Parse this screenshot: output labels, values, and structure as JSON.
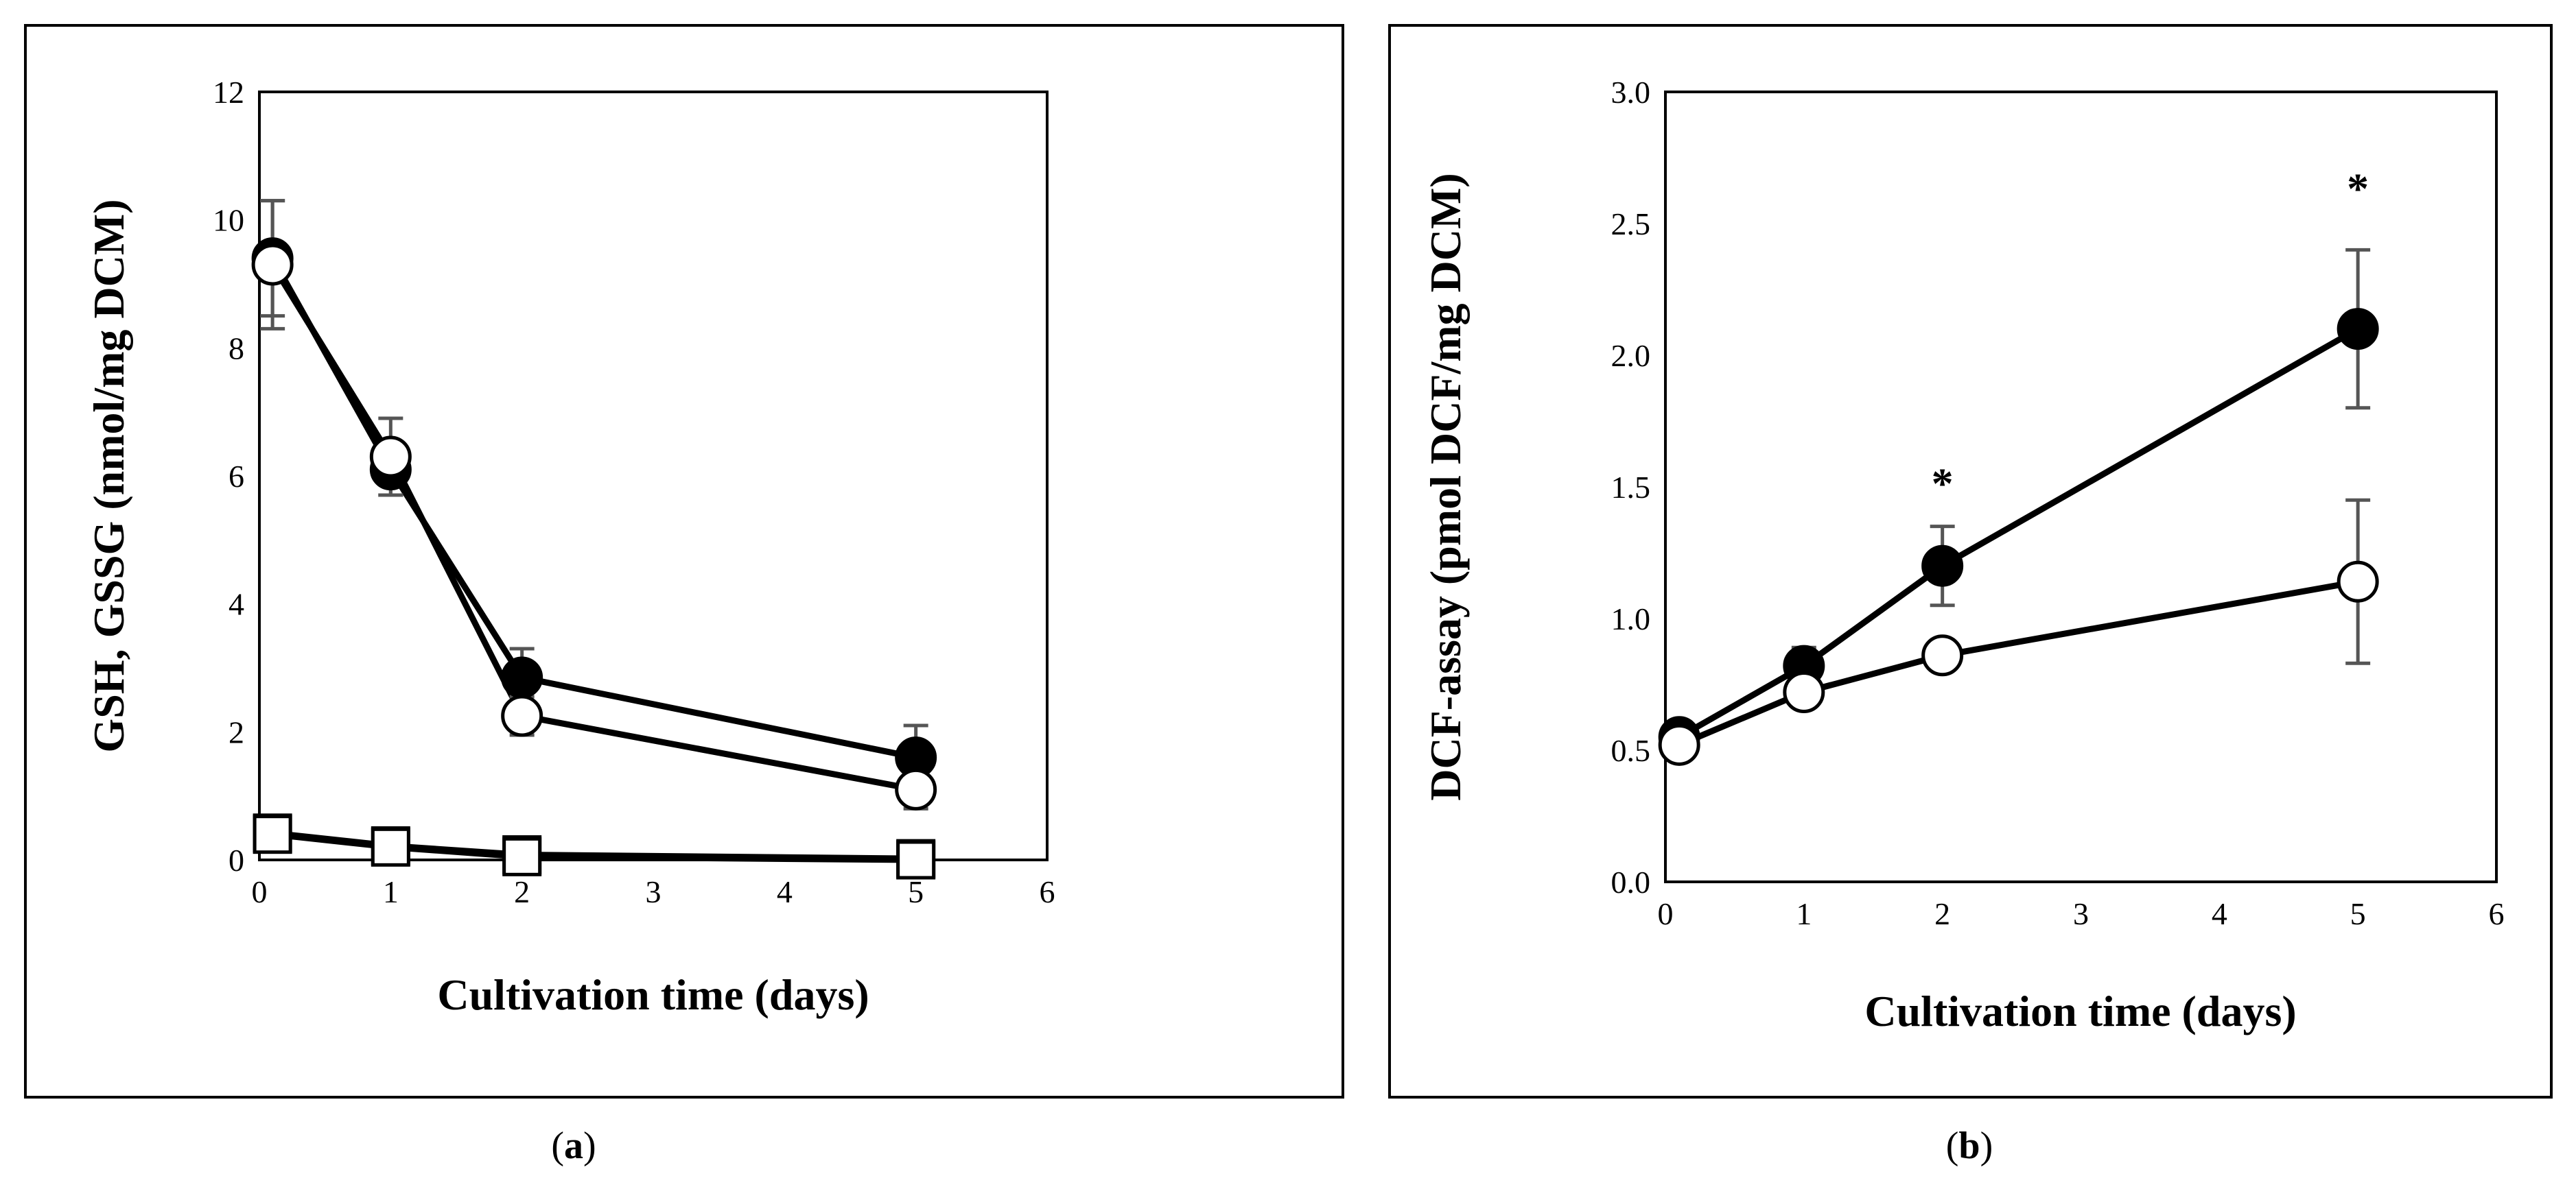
{
  "colors": {
    "ink": "#000000",
    "errorbar": "#555555",
    "marker_open": "#ffffff",
    "marker_filled": "#000000"
  },
  "chart_data": [
    {
      "id": "a",
      "type": "line",
      "panel_label": "a",
      "xlabel": "Cultivation time (days)",
      "ylabel": "GSH, GSSG (nmol/mg DCM)",
      "xlim": [
        0,
        6
      ],
      "ylim": [
        0,
        12
      ],
      "xticks": [
        "0",
        "1",
        "2",
        "3",
        "4",
        "5",
        "6"
      ],
      "yticks": [
        "0",
        "2",
        "4",
        "6",
        "8",
        "10",
        "12"
      ],
      "series": [
        {
          "name": "GSH filled",
          "marker": "filled-circle",
          "x": [
            0.1,
            1,
            2,
            5
          ],
          "y": [
            9.4,
            6.1,
            2.85,
            1.6
          ],
          "err": [
            0.9,
            0.4,
            0.45,
            0.5
          ]
        },
        {
          "name": "GSH open",
          "marker": "open-circle",
          "x": [
            0.1,
            1,
            2,
            5
          ],
          "y": [
            9.3,
            6.3,
            2.25,
            1.1
          ],
          "err": [
            1.0,
            0.6,
            0.3,
            0.3
          ]
        },
        {
          "name": "GSSG open",
          "marker": "open-square",
          "x": [
            0.1,
            1,
            2,
            5
          ],
          "y": [
            0.4,
            0.2,
            0.05,
            0.0
          ],
          "err": [
            0,
            0,
            0,
            0
          ]
        },
        {
          "name": "GSSG filled",
          "marker": "filled-square",
          "x": [
            0.1,
            1,
            2,
            5
          ],
          "y": [
            0.42,
            0.22,
            0.08,
            0.02
          ],
          "err": [
            0,
            0,
            0,
            0
          ]
        }
      ],
      "annotations": []
    },
    {
      "id": "b",
      "type": "line",
      "panel_label": "b",
      "xlabel": "Cultivation time (days)",
      "ylabel": "DCF-assay (pmol DCF/mg DCM)",
      "xlim": [
        0,
        6
      ],
      "ylim": [
        0,
        3.0
      ],
      "xticks": [
        "0",
        "1",
        "2",
        "3",
        "4",
        "5",
        "6"
      ],
      "yticks": [
        "0.0",
        "0.5",
        "1.0",
        "1.5",
        "2.0",
        "2.5",
        "3.0"
      ],
      "series": [
        {
          "name": "filled",
          "marker": "filled-circle",
          "x": [
            0.1,
            1,
            2,
            5
          ],
          "y": [
            0.55,
            0.82,
            1.2,
            2.1
          ],
          "err": [
            0.05,
            0.07,
            0.15,
            0.3
          ]
        },
        {
          "name": "open",
          "marker": "open-circle",
          "x": [
            0.1,
            1,
            2,
            5
          ],
          "y": [
            0.52,
            0.72,
            0.86,
            1.14
          ],
          "err": [
            0.03,
            0.05,
            0.05,
            0.31
          ]
        }
      ],
      "annotations": [
        {
          "text": "*",
          "x": 2,
          "y": 1.53
        },
        {
          "text": "*",
          "x": 5,
          "y": 2.65
        }
      ]
    }
  ]
}
